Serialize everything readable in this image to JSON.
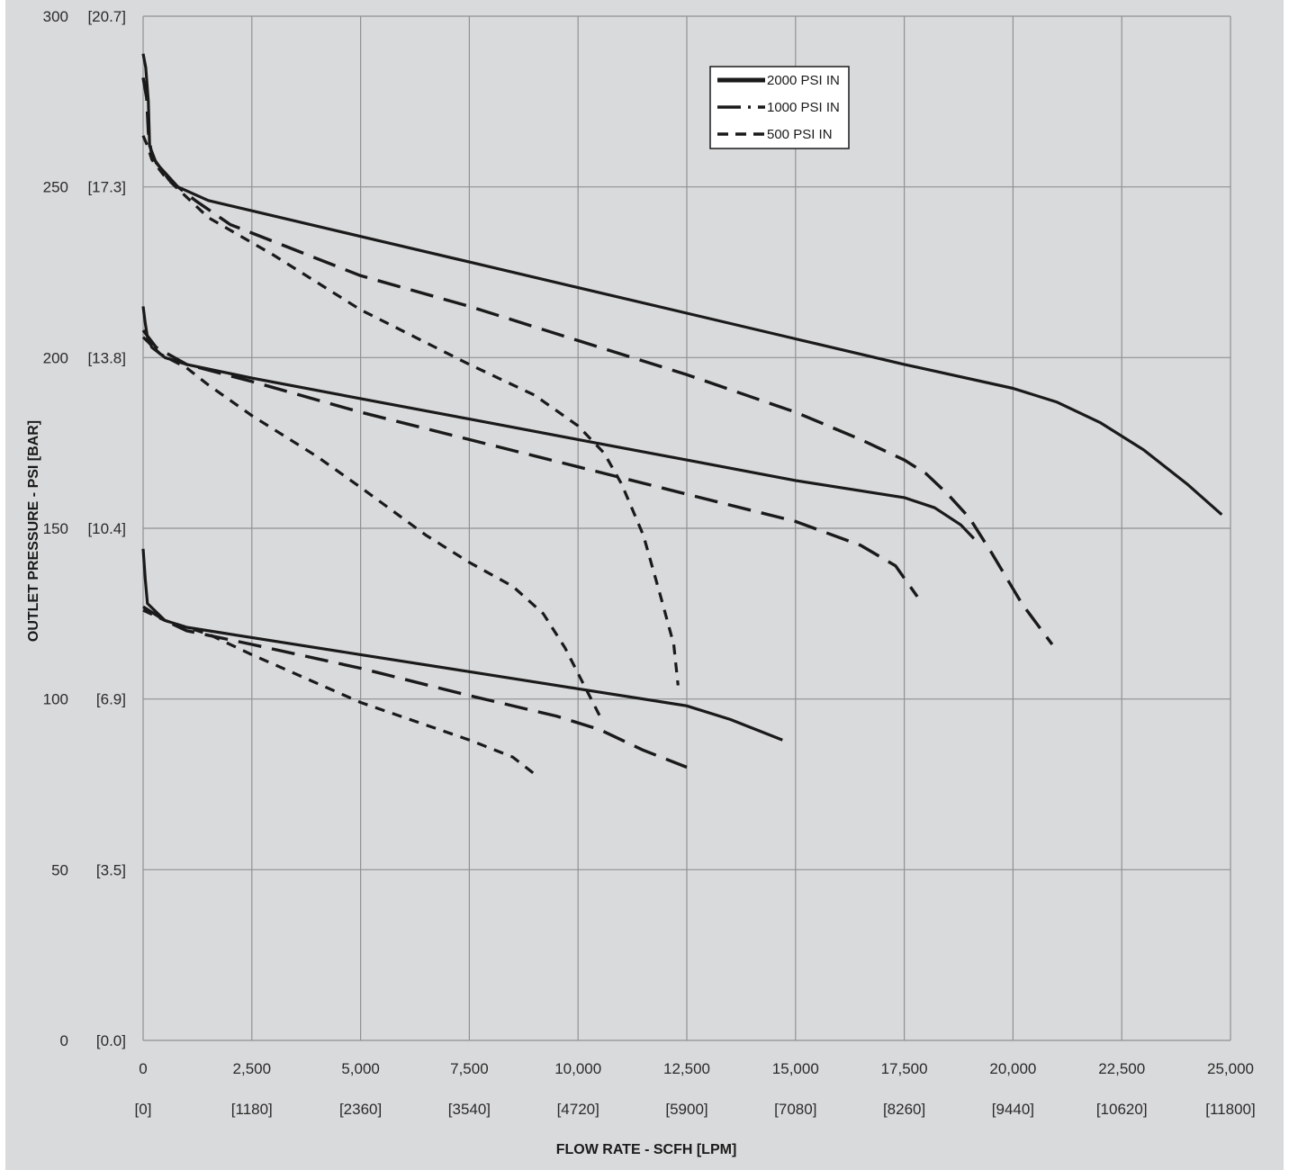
{
  "colors": {
    "plot_bg": "#d9dadb",
    "page_bg": "#ffffff",
    "grid": "#8f9193",
    "line": "#1a1a1a"
  },
  "chart_data": {
    "type": "line",
    "title": "",
    "xlabel": "FLOW RATE - SCFH [LPM]",
    "ylabel": "OUTLET PRESSURE - PSI [BAR]",
    "xlim": [
      0,
      25000
    ],
    "ylim": [
      0,
      300
    ],
    "grid": true,
    "legend_position": "top-center",
    "x_ticks": [
      {
        "value": 0,
        "label": "0",
        "sublabel": "[0]"
      },
      {
        "value": 2500,
        "label": "2,500",
        "sublabel": "[1180]"
      },
      {
        "value": 5000,
        "label": "5,000",
        "sublabel": "[2360]"
      },
      {
        "value": 7500,
        "label": "7,500",
        "sublabel": "[3540]"
      },
      {
        "value": 10000,
        "label": "10,000",
        "sublabel": "[4720]"
      },
      {
        "value": 12500,
        "label": "12,500",
        "sublabel": "[5900]"
      },
      {
        "value": 15000,
        "label": "15,000",
        "sublabel": "[7080]"
      },
      {
        "value": 17500,
        "label": "17,500",
        "sublabel": "[8260]"
      },
      {
        "value": 20000,
        "label": "20,000",
        "sublabel": "[9440]"
      },
      {
        "value": 22500,
        "label": "22,500",
        "sublabel": "[10620]"
      },
      {
        "value": 25000,
        "label": "25,000",
        "sublabel": "[11800]"
      }
    ],
    "y_ticks": [
      {
        "value": 0,
        "label": "0",
        "sublabel": "[0.0]"
      },
      {
        "value": 50,
        "label": "50",
        "sublabel": "[3.5]"
      },
      {
        "value": 100,
        "label": "100",
        "sublabel": "[6.9]"
      },
      {
        "value": 150,
        "label": "150",
        "sublabel": "[10.4]"
      },
      {
        "value": 200,
        "label": "200",
        "sublabel": "[13.8]"
      },
      {
        "value": 250,
        "label": "250",
        "sublabel": "[17.3]"
      },
      {
        "value": 300,
        "label": "300",
        "sublabel": "[20.7]"
      }
    ],
    "legend": [
      {
        "label": "2000 PSI IN",
        "style": "solid"
      },
      {
        "label": "1000 PSI IN",
        "style": "longdash"
      },
      {
        "label": "500 PSI IN",
        "style": "dash"
      }
    ],
    "series": [
      {
        "style": "solid",
        "points": [
          [
            0,
            289
          ],
          [
            60,
            285
          ],
          [
            120,
            275
          ],
          [
            150,
            262
          ],
          [
            300,
            257
          ],
          [
            800,
            250
          ],
          [
            1500,
            246
          ],
          [
            2500,
            243
          ],
          [
            5000,
            235.5
          ],
          [
            7500,
            228
          ],
          [
            10000,
            220.5
          ],
          [
            12500,
            213
          ],
          [
            15000,
            205.5
          ],
          [
            17500,
            198
          ],
          [
            20000,
            191
          ],
          [
            21000,
            187
          ],
          [
            22000,
            181
          ],
          [
            23000,
            173
          ],
          [
            24000,
            163
          ],
          [
            24800,
            154
          ]
        ]
      },
      {
        "style": "longdash",
        "points": [
          [
            0,
            282
          ],
          [
            80,
            276
          ],
          [
            120,
            266
          ],
          [
            200,
            259
          ],
          [
            600,
            252
          ],
          [
            1200,
            246
          ],
          [
            2000,
            239
          ],
          [
            5000,
            224
          ],
          [
            7500,
            215
          ],
          [
            10000,
            205
          ],
          [
            12500,
            195
          ],
          [
            15000,
            184
          ],
          [
            16500,
            176
          ],
          [
            17500,
            170
          ],
          [
            18000,
            166
          ],
          [
            18500,
            160
          ],
          [
            19000,
            153
          ],
          [
            19500,
            143
          ],
          [
            20200,
            128
          ],
          [
            20900,
            116
          ]
        ]
      },
      {
        "style": "dash",
        "points": [
          [
            0,
            265
          ],
          [
            100,
            262
          ],
          [
            200,
            258
          ],
          [
            500,
            253
          ],
          [
            1500,
            241
          ],
          [
            3000,
            230
          ],
          [
            5000,
            214
          ],
          [
            7500,
            198
          ],
          [
            9000,
            189
          ],
          [
            10000,
            180
          ],
          [
            10600,
            172
          ],
          [
            11000,
            163
          ],
          [
            11500,
            148
          ],
          [
            11900,
            130
          ],
          [
            12200,
            116
          ],
          [
            12300,
            104
          ]
        ]
      },
      {
        "style": "solid",
        "points": [
          [
            0,
            215
          ],
          [
            50,
            210
          ],
          [
            100,
            206
          ],
          [
            200,
            203
          ],
          [
            500,
            200
          ],
          [
            1000,
            198
          ],
          [
            2500,
            194
          ],
          [
            5000,
            188
          ],
          [
            7500,
            182
          ],
          [
            10000,
            176
          ],
          [
            12500,
            170
          ],
          [
            15000,
            164
          ],
          [
            17500,
            159
          ],
          [
            18200,
            156
          ],
          [
            18800,
            151
          ],
          [
            19100,
            147
          ]
        ]
      },
      {
        "style": "longdash",
        "points": [
          [
            0,
            208
          ],
          [
            300,
            203
          ],
          [
            1000,
            198
          ],
          [
            2500,
            193
          ],
          [
            5000,
            184
          ],
          [
            7500,
            176
          ],
          [
            10000,
            168
          ],
          [
            12500,
            160
          ],
          [
            15000,
            152
          ],
          [
            16500,
            145
          ],
          [
            17300,
            139
          ],
          [
            17800,
            130
          ]
        ]
      },
      {
        "style": "dash",
        "points": [
          [
            0,
            206
          ],
          [
            400,
            201
          ],
          [
            1000,
            197
          ],
          [
            1500,
            192
          ],
          [
            2500,
            183
          ],
          [
            4000,
            171
          ],
          [
            5000,
            162
          ],
          [
            6500,
            148
          ],
          [
            7500,
            140
          ],
          [
            8500,
            133
          ],
          [
            9200,
            125
          ],
          [
            9700,
            115
          ],
          [
            10100,
            105
          ],
          [
            10500,
            95
          ]
        ]
      },
      {
        "style": "solid",
        "points": [
          [
            0,
            144
          ],
          [
            50,
            135
          ],
          [
            100,
            128
          ],
          [
            500,
            123
          ],
          [
            1000,
            121
          ],
          [
            2500,
            118
          ],
          [
            5000,
            113
          ],
          [
            7500,
            108
          ],
          [
            10000,
            103
          ],
          [
            12500,
            98
          ],
          [
            13500,
            94
          ],
          [
            14300,
            90
          ],
          [
            14700,
            88
          ]
        ]
      },
      {
        "style": "longdash",
        "points": [
          [
            0,
            127
          ],
          [
            500,
            123
          ],
          [
            1000,
            120
          ],
          [
            2500,
            116
          ],
          [
            5000,
            109
          ],
          [
            7500,
            101
          ],
          [
            9500,
            95
          ],
          [
            10500,
            91
          ],
          [
            11500,
            85
          ],
          [
            12500,
            80
          ]
        ]
      },
      {
        "style": "dash",
        "points": [
          [
            0,
            126
          ],
          [
            500,
            123
          ],
          [
            1500,
            119
          ],
          [
            2500,
            113
          ],
          [
            5000,
            99
          ],
          [
            7500,
            88
          ],
          [
            8500,
            83
          ],
          [
            9000,
            78
          ]
        ]
      }
    ]
  }
}
